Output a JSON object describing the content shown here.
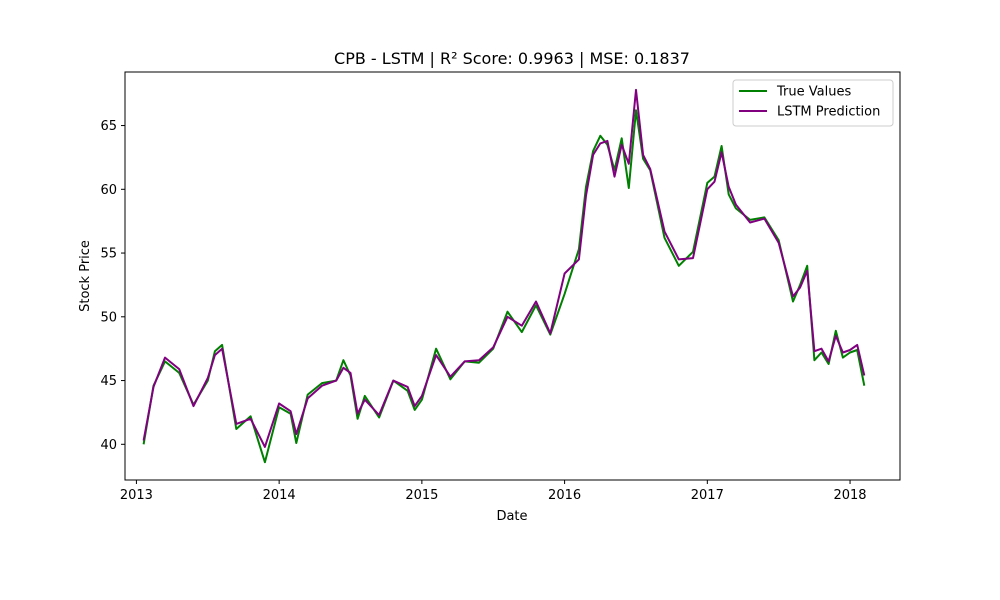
{
  "chart_data": {
    "type": "line",
    "title": "CPB - LSTM | R² Score: 0.9963 | MSE: 0.1837",
    "xlabel": "Date",
    "ylabel": "Stock Price",
    "xlim": [
      2012.92,
      2018.35
    ],
    "ylim": [
      37.2,
      69.2
    ],
    "x_ticks": [
      2013,
      2014,
      2015,
      2016,
      2017,
      2018
    ],
    "x_tick_labels": [
      "2013",
      "2014",
      "2015",
      "2016",
      "2017",
      "2018"
    ],
    "y_ticks": [
      40,
      45,
      50,
      55,
      60,
      65
    ],
    "y_tick_labels": [
      "40",
      "45",
      "50",
      "55",
      "60",
      "65"
    ],
    "grid": false,
    "legend": "top-right",
    "series": [
      {
        "name": "True Values",
        "color": "#008000",
        "x": [
          2013.05,
          2013.12,
          2013.2,
          2013.3,
          2013.4,
          2013.5,
          2013.55,
          2013.6,
          2013.7,
          2013.8,
          2013.9,
          2014.0,
          2014.08,
          2014.12,
          2014.2,
          2014.3,
          2014.4,
          2014.45,
          2014.5,
          2014.55,
          2014.6,
          2014.7,
          2014.8,
          2014.9,
          2014.95,
          2015.0,
          2015.1,
          2015.2,
          2015.3,
          2015.4,
          2015.5,
          2015.6,
          2015.7,
          2015.8,
          2015.9,
          2016.0,
          2016.1,
          2016.15,
          2016.2,
          2016.25,
          2016.3,
          2016.35,
          2016.4,
          2016.45,
          2016.5,
          2016.55,
          2016.6,
          2016.7,
          2016.8,
          2016.9,
          2017.0,
          2017.05,
          2017.1,
          2017.15,
          2017.2,
          2017.3,
          2017.4,
          2017.5,
          2017.6,
          2017.65,
          2017.7,
          2017.75,
          2017.8,
          2017.85,
          2017.9,
          2017.95,
          2018.0,
          2018.05,
          2018.1
        ],
        "y": [
          40.0,
          44.6,
          46.5,
          45.6,
          43.1,
          45.0,
          47.3,
          47.8,
          41.2,
          42.2,
          38.6,
          42.9,
          42.4,
          40.1,
          43.9,
          44.8,
          45.0,
          46.6,
          45.4,
          42.0,
          43.8,
          42.1,
          45.0,
          44.2,
          42.7,
          43.5,
          47.5,
          45.1,
          46.5,
          46.4,
          47.5,
          50.4,
          48.8,
          50.9,
          48.6,
          51.8,
          55.3,
          60.2,
          63.0,
          64.2,
          63.5,
          61.5,
          64.0,
          60.1,
          66.2,
          62.4,
          61.5,
          56.2,
          54.0,
          55.1,
          60.5,
          61.0,
          63.4,
          59.6,
          58.5,
          57.6,
          57.8,
          56.0,
          51.2,
          52.5,
          54.0,
          46.6,
          47.2,
          46.3,
          48.9,
          46.8,
          47.2,
          47.4,
          44.6
        ]
      },
      {
        "name": "LSTM Prediction",
        "color": "#800080",
        "x": [
          2013.05,
          2013.12,
          2013.2,
          2013.3,
          2013.4,
          2013.5,
          2013.55,
          2013.6,
          2013.7,
          2013.8,
          2013.9,
          2014.0,
          2014.08,
          2014.12,
          2014.2,
          2014.3,
          2014.4,
          2014.45,
          2014.5,
          2014.55,
          2014.6,
          2014.7,
          2014.8,
          2014.9,
          2014.95,
          2015.0,
          2015.1,
          2015.2,
          2015.3,
          2015.4,
          2015.5,
          2015.6,
          2015.7,
          2015.8,
          2015.9,
          2016.0,
          2016.1,
          2016.15,
          2016.2,
          2016.25,
          2016.3,
          2016.35,
          2016.4,
          2016.45,
          2016.5,
          2016.55,
          2016.6,
          2016.7,
          2016.8,
          2016.9,
          2017.0,
          2017.05,
          2017.1,
          2017.15,
          2017.2,
          2017.3,
          2017.4,
          2017.5,
          2017.6,
          2017.65,
          2017.7,
          2017.75,
          2017.8,
          2017.85,
          2017.9,
          2017.95,
          2018.0,
          2018.05,
          2018.1
        ],
        "y": [
          40.3,
          44.5,
          46.8,
          45.9,
          43.0,
          45.2,
          47.0,
          47.5,
          41.6,
          42.0,
          39.8,
          43.2,
          42.6,
          40.8,
          43.6,
          44.6,
          45.0,
          46.0,
          45.6,
          42.4,
          43.5,
          42.3,
          45.0,
          44.5,
          43.0,
          43.8,
          47.0,
          45.3,
          46.5,
          46.6,
          47.6,
          50.0,
          49.3,
          51.2,
          48.7,
          53.4,
          54.5,
          59.5,
          62.7,
          63.6,
          63.8,
          61.0,
          63.5,
          62.0,
          67.8,
          62.7,
          61.6,
          56.7,
          54.5,
          54.6,
          60.0,
          60.6,
          62.9,
          60.2,
          58.8,
          57.4,
          57.7,
          55.8,
          51.6,
          52.3,
          53.6,
          47.3,
          47.5,
          46.5,
          48.5,
          47.2,
          47.4,
          47.8,
          45.4
        ]
      }
    ]
  }
}
